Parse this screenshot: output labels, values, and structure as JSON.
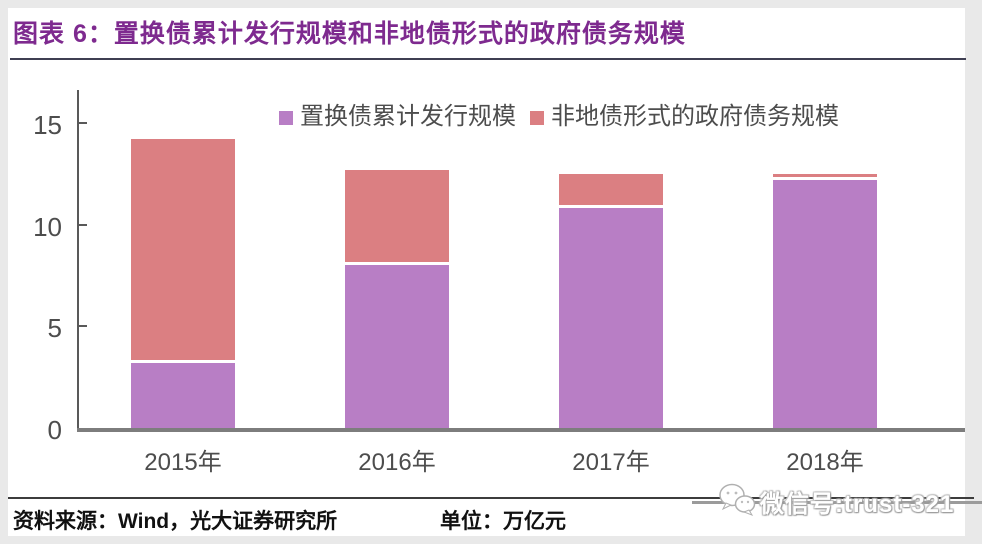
{
  "header": {
    "title": "图表 6：置换债累计发行规模和非地债形式的政府债务规模"
  },
  "chart_data": {
    "type": "bar",
    "stacked": true,
    "title": "置换债累计发行规模和非地债形式的政府债务规模",
    "categories": [
      "2015年",
      "2016年",
      "2017年",
      "2018年"
    ],
    "series": [
      {
        "name": "置换债累计发行规模",
        "color": "#b87ec5",
        "values": [
          3.2,
          8.0,
          10.8,
          12.2
        ]
      },
      {
        "name": "非地债形式的政府债务规模",
        "color": "#db7f82",
        "values": [
          11.0,
          4.7,
          1.7,
          0.3
        ]
      }
    ],
    "totals": [
      14.2,
      12.7,
      12.5,
      12.5
    ],
    "yticks": [
      0,
      5,
      10,
      15
    ],
    "ylim": [
      0,
      16.6
    ],
    "xlabel": "",
    "ylabel": "",
    "unit": "万亿元",
    "legend_position": "top-center",
    "grid": false
  },
  "footer": {
    "source": "资料来源：Wind，光大证券研究所",
    "unit_label": "单位：万亿元"
  },
  "watermark": {
    "text": "微信号:trust-321",
    "icon": "wechat-icon"
  },
  "colors": {
    "title": "#7e2a8f",
    "axis": "#595959",
    "baseline": "#7d7d7d",
    "series_1": "#b87ec5",
    "series_2": "#db7f82"
  }
}
